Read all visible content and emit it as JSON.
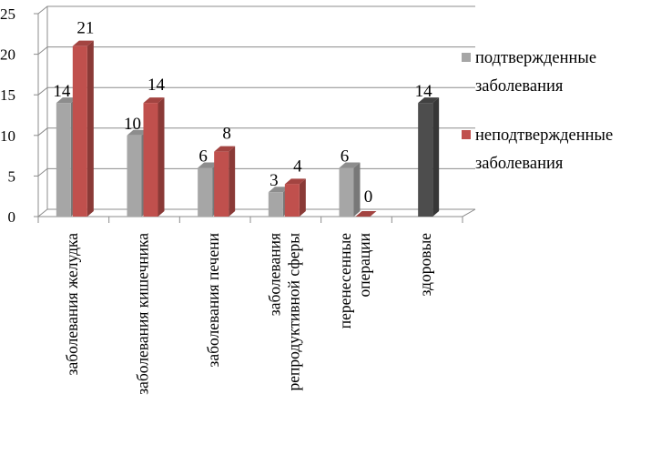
{
  "chart_data": {
    "type": "bar",
    "categories": [
      [
        "заболевания желудка"
      ],
      [
        "заболевания кишечника"
      ],
      [
        "заболевания печени"
      ],
      [
        "заболевания",
        "репродуктивной сферы"
      ],
      [
        "перенесенные",
        "операции"
      ],
      [
        "здоровые"
      ]
    ],
    "series": [
      {
        "name": "подтвержденные заболевания",
        "color": "#a6a6a6",
        "values": [
          14,
          10,
          6,
          3,
          6,
          14
        ]
      },
      {
        "name": "неподтвержденные заболевания",
        "color": "#c0504d",
        "values": [
          21,
          14,
          8,
          4,
          0,
          null
        ]
      }
    ],
    "special_bar_colors": {
      "здоровые": "#4d4d4d"
    },
    "ylim": [
      0,
      25
    ],
    "yticks": [
      0,
      5,
      10,
      15,
      20,
      25
    ],
    "grid": true,
    "legend_position": "right",
    "legend": [
      {
        "lines": [
          "подтвержденные",
          "заболевания"
        ],
        "color": "#a6a6a6"
      },
      {
        "lines": [
          "неподтвержденные",
          "заболевания"
        ],
        "color": "#c0504d"
      }
    ],
    "style": "3d-bar"
  }
}
